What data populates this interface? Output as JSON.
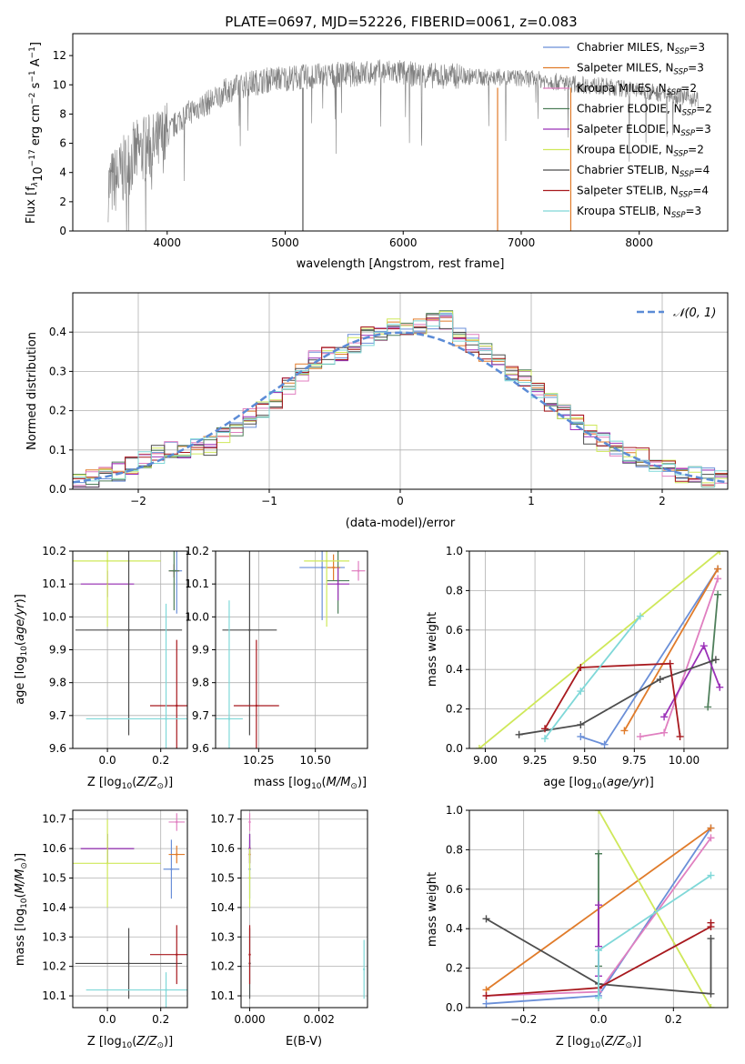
{
  "figure_title": "PLATE=0697, MJD=52226, FIBERID=0061, z=0.083",
  "colors": {
    "chabrier_miles": "#6a8fd8",
    "salpeter_miles": "#e07b2a",
    "kroupa_miles": "#e07fc0",
    "chabrier_elodie": "#4f7f5b",
    "salpeter_elodie": "#9b30b8",
    "kroupa_elodie": "#cfe85a",
    "chabrier_stelib": "#4d4d4d",
    "salpeter_stelib": "#a8191e",
    "kroupa_stelib": "#7fd8d8",
    "data": "#808080",
    "normal": "#5b8bd6"
  },
  "chart_data": [
    {
      "type": "line",
      "id": "spectrum",
      "xlabel": "wavelength [Angstrom, rest frame]",
      "ylabel": "Flux [f",
      "ylabel_parts": [
        "Flux [f",
        "λ",
        "10",
        "−17",
        " erg cm",
        "−2",
        " s",
        "−1",
        " A",
        "−1",
        "]"
      ],
      "xlim": [
        3200,
        8750
      ],
      "ylim": [
        0,
        13.5
      ],
      "xticks": [
        4000,
        5000,
        6000,
        7000,
        8000
      ],
      "yticks": [
        0,
        2,
        4,
        6,
        8,
        10,
        12
      ],
      "legend_position": "right",
      "legend": [
        {
          "label": "Chabrier MILES, N",
          "sub": "SSP",
          "eq": "=3",
          "color": "#6a8fd8"
        },
        {
          "label": "Salpeter MILES, N",
          "sub": "SSP",
          "eq": "=3",
          "color": "#e07b2a"
        },
        {
          "label": "Kroupa MILES, N",
          "sub": "SSP",
          "eq": "=2",
          "color": "#e07fc0"
        },
        {
          "label": "Chabrier ELODIE, N",
          "sub": "SSP",
          "eq": "=2",
          "color": "#4f7f5b"
        },
        {
          "label": "Salpeter ELODIE, N",
          "sub": "SSP",
          "eq": "=3",
          "color": "#9b30b8"
        },
        {
          "label": "Kroupa ELODIE, N",
          "sub": "SSP",
          "eq": "=2",
          "color": "#cfe85a"
        },
        {
          "label": "Chabrier STELIB, N",
          "sub": "SSP",
          "eq": "=4",
          "color": "#4d4d4d"
        },
        {
          "label": "Salpeter STELIB, N",
          "sub": "SSP",
          "eq": "=4",
          "color": "#a8191e"
        },
        {
          "label": "Kroupa STELIB, N",
          "sub": "SSP",
          "eq": "=3",
          "color": "#7fd8d8"
        }
      ],
      "continuum": {
        "x": [
          3500,
          3600,
          3700,
          3800,
          3900,
          4000,
          4100,
          4200,
          4300,
          4400,
          4500,
          4700,
          4900,
          5100,
          5300,
          5500,
          5700,
          5900,
          6100,
          6300,
          6500,
          6700,
          6900,
          7100,
          7300,
          7500,
          7700,
          7900,
          8100,
          8300,
          8500
        ],
        "y": [
          3.0,
          3.8,
          5.0,
          5.6,
          5.8,
          6.6,
          7.6,
          8.2,
          8.6,
          9.0,
          9.6,
          10.1,
          10.4,
          10.5,
          10.6,
          10.7,
          10.8,
          10.9,
          10.7,
          10.6,
          10.6,
          10.5,
          10.5,
          10.4,
          10.2,
          10.0,
          9.9,
          9.7,
          9.5,
          9.3,
          9.0
        ]
      }
    },
    {
      "type": "bar",
      "id": "residuals",
      "xlabel": "(data-model)/error",
      "ylabel": "Normed distribution",
      "xlim": [
        -2.5,
        2.5
      ],
      "ylim": [
        0,
        0.5
      ],
      "xticks": [
        -2,
        -1,
        0,
        1,
        2
      ],
      "yticks": [
        0.0,
        0.1,
        0.2,
        0.3,
        0.4
      ],
      "grid": true,
      "legend_position": "top-right",
      "legend_label": "𝒩(0, 1)",
      "bin_centers": [
        -2.45,
        -2.35,
        -2.25,
        -2.15,
        -2.05,
        -1.95,
        -1.85,
        -1.75,
        -1.65,
        -1.55,
        -1.45,
        -1.35,
        -1.25,
        -1.15,
        -1.05,
        -0.95,
        -0.85,
        -0.75,
        -0.65,
        -0.55,
        -0.45,
        -0.35,
        -0.25,
        -0.15,
        -0.05,
        0.05,
        0.15,
        0.25,
        0.35,
        0.45,
        0.55,
        0.65,
        0.75,
        0.85,
        0.95,
        1.05,
        1.15,
        1.25,
        1.35,
        1.45,
        1.55,
        1.65,
        1.75,
        1.85,
        1.95,
        2.05,
        2.15,
        2.25,
        2.35,
        2.45
      ],
      "histogram": [
        0.018,
        0.025,
        0.031,
        0.045,
        0.06,
        0.075,
        0.09,
        0.1,
        0.102,
        0.104,
        0.11,
        0.14,
        0.16,
        0.18,
        0.2,
        0.23,
        0.26,
        0.3,
        0.33,
        0.34,
        0.35,
        0.37,
        0.39,
        0.4,
        0.41,
        0.4,
        0.41,
        0.43,
        0.43,
        0.39,
        0.37,
        0.35,
        0.33,
        0.3,
        0.28,
        0.25,
        0.22,
        0.2,
        0.17,
        0.14,
        0.12,
        0.1,
        0.09,
        0.08,
        0.065,
        0.05,
        0.04,
        0.035,
        0.03,
        0.03
      ]
    },
    {
      "type": "scatter",
      "id": "age-vs-Z",
      "xlabel": "Z [log",
      "xlabel_parts": [
        "Z [log",
        "10",
        "(",
        "Z/Z",
        "⊙",
        ")]"
      ],
      "ylabel": "age  [log",
      "ylabel_parts": [
        "age  [log",
        "10",
        "(",
        "age/yr",
        ")]"
      ],
      "xlim": [
        -0.13,
        0.3
      ],
      "ylim": [
        9.6,
        10.2
      ],
      "xticks": [
        0.0,
        0.2
      ],
      "yticks": [
        9.6,
        9.7,
        9.8,
        9.9,
        10.0,
        10.1,
        10.2
      ],
      "grid": true,
      "points": [
        {
          "model": "chabrier_miles",
          "x": 0.26,
          "y": 10.14,
          "xerr": 0.02,
          "yerr": 0.13
        },
        {
          "model": "salpeter_miles",
          "x": 0.25,
          "y": 10.14,
          "xerr": 0.02,
          "yerr": 0.02
        },
        {
          "model": "kroupa_miles",
          "x": 0.25,
          "y": 10.14,
          "xerr": 0.02,
          "yerr": 0.02
        },
        {
          "model": "chabrier_elodie",
          "x": 0.25,
          "y": 10.14,
          "xerr": 0.02,
          "yerr": 0.12
        },
        {
          "model": "salpeter_elodie",
          "x": 0.0,
          "y": 10.1,
          "xerr": 0.1,
          "yerr": 0.04
        },
        {
          "model": "kroupa_elodie",
          "x": 0.0,
          "y": 10.17,
          "xerr": 0.2,
          "yerr": 0.2
        },
        {
          "model": "chabrier_stelib",
          "x": 0.08,
          "y": 9.96,
          "xerr": 0.2,
          "yerr": 0.32
        },
        {
          "model": "salpeter_stelib",
          "x": 0.26,
          "y": 9.73,
          "xerr": 0.1,
          "yerr": 0.2
        },
        {
          "model": "kroupa_stelib",
          "x": 0.22,
          "y": 9.69,
          "xerr": 0.3,
          "yerr": 0.35
        }
      ]
    },
    {
      "type": "scatter",
      "id": "age-vs-mass",
      "xlabel": "mass [log",
      "xlabel_parts": [
        "mass [log",
        "10",
        "(",
        "M/M",
        "⊙",
        ")]"
      ],
      "xlim": [
        10.06,
        10.73
      ],
      "ylim": [
        9.6,
        10.2
      ],
      "xticks": [
        10.25,
        10.5
      ],
      "yticks": [
        9.6,
        9.7,
        9.8,
        9.9,
        10.0,
        10.1,
        10.2
      ],
      "grid": true,
      "points": [
        {
          "model": "chabrier_miles",
          "x": 10.53,
          "y": 10.15,
          "xerr": 0.1,
          "yerr": 0.16
        },
        {
          "model": "salpeter_miles",
          "x": 10.58,
          "y": 10.15,
          "xerr": 0.03,
          "yerr": 0.04
        },
        {
          "model": "kroupa_miles",
          "x": 10.69,
          "y": 10.14,
          "xerr": 0.03,
          "yerr": 0.03
        },
        {
          "model": "chabrier_elodie",
          "x": 10.6,
          "y": 10.11,
          "xerr": 0.05,
          "yerr": 0.1
        },
        {
          "model": "salpeter_elodie",
          "x": 10.6,
          "y": 10.1,
          "xerr": 0.05,
          "yerr": 0.05
        },
        {
          "model": "kroupa_elodie",
          "x": 10.55,
          "y": 10.17,
          "xerr": 0.1,
          "yerr": 0.2
        },
        {
          "model": "chabrier_stelib",
          "x": 10.21,
          "y": 9.96,
          "xerr": 0.12,
          "yerr": 0.32
        },
        {
          "model": "salpeter_stelib",
          "x": 10.24,
          "y": 9.73,
          "xerr": 0.1,
          "yerr": 0.2
        },
        {
          "model": "kroupa_stelib",
          "x": 10.12,
          "y": 9.69,
          "xerr": 0.06,
          "yerr": 0.36
        }
      ]
    },
    {
      "type": "line",
      "id": "weight-vs-age",
      "xlabel": "age  [log",
      "xlabel_parts": [
        "age  [log",
        "10",
        "(",
        "age/yr",
        ")]"
      ],
      "ylabel": "mass weight",
      "xlim": [
        8.92,
        10.22
      ],
      "ylim": [
        0,
        1
      ],
      "xticks": [
        9.0,
        9.25,
        9.5,
        9.75,
        10.0
      ],
      "yticks": [
        0.0,
        0.2,
        0.4,
        0.6,
        0.8,
        1.0
      ],
      "grid": true,
      "series": [
        {
          "model": "chabrier_miles",
          "x": [
            9.48,
            9.6,
            10.17
          ],
          "y": [
            0.06,
            0.02,
            0.91
          ]
        },
        {
          "model": "salpeter_miles",
          "x": [
            9.7,
            10.17
          ],
          "y": [
            0.09,
            0.91
          ]
        },
        {
          "model": "kroupa_miles",
          "x": [
            9.78,
            9.9,
            10.17
          ],
          "y": [
            0.06,
            0.08,
            0.86
          ]
        },
        {
          "model": "chabrier_elodie",
          "x": [
            10.12,
            10.17
          ],
          "y": [
            0.21,
            0.78
          ]
        },
        {
          "model": "salpeter_elodie",
          "x": [
            9.9,
            10.1,
            10.18
          ],
          "y": [
            0.16,
            0.52,
            0.31
          ]
        },
        {
          "model": "kroupa_elodie",
          "x": [
            8.97,
            10.18
          ],
          "y": [
            0.0,
            1.0
          ]
        },
        {
          "model": "chabrier_stelib",
          "x": [
            9.17,
            9.48,
            9.88,
            10.16
          ],
          "y": [
            0.07,
            0.12,
            0.35,
            0.45
          ]
        },
        {
          "model": "salpeter_stelib",
          "x": [
            9.3,
            9.48,
            9.93,
            9.98
          ],
          "y": [
            0.1,
            0.41,
            0.43,
            0.06
          ]
        },
        {
          "model": "kroupa_stelib",
          "x": [
            9.3,
            9.48,
            9.78
          ],
          "y": [
            0.05,
            0.29,
            0.67
          ]
        }
      ]
    },
    {
      "type": "scatter",
      "id": "mass-vs-Z",
      "xlabel": "Z [log",
      "xlabel_parts": [
        "Z [log",
        "10",
        "(",
        "Z/Z",
        "⊙",
        ")]"
      ],
      "ylabel": "mass [log",
      "ylabel_parts": [
        "mass [log",
        "10",
        "(",
        "M/M",
        "⊙",
        ")]"
      ],
      "xlim": [
        -0.13,
        0.3
      ],
      "ylim": [
        10.06,
        10.73
      ],
      "xticks": [
        0.0,
        0.2
      ],
      "yticks": [
        10.1,
        10.2,
        10.3,
        10.4,
        10.5,
        10.6,
        10.7
      ],
      "grid": true,
      "points": [
        {
          "model": "chabrier_miles",
          "x": 0.24,
          "y": 10.53,
          "xerr": 0.03,
          "yerr": 0.1
        },
        {
          "model": "salpeter_miles",
          "x": 0.26,
          "y": 10.58,
          "xerr": 0.03,
          "yerr": 0.03
        },
        {
          "model": "kroupa_miles",
          "x": 0.26,
          "y": 10.69,
          "xerr": 0.03,
          "yerr": 0.03
        },
        {
          "model": "chabrier_elodie",
          "x": 0.0,
          "y": 10.6,
          "xerr": 0.1,
          "yerr": 0.05
        },
        {
          "model": "salpeter_elodie",
          "x": 0.0,
          "y": 10.6,
          "xerr": 0.1,
          "yerr": 0.05
        },
        {
          "model": "kroupa_elodie",
          "x": 0.0,
          "y": 10.55,
          "xerr": 0.2,
          "yerr": 0.15
        },
        {
          "model": "chabrier_stelib",
          "x": 0.08,
          "y": 10.21,
          "xerr": 0.2,
          "yerr": 0.12
        },
        {
          "model": "salpeter_stelib",
          "x": 0.26,
          "y": 10.24,
          "xerr": 0.1,
          "yerr": 0.1
        },
        {
          "model": "kroupa_stelib",
          "x": 0.22,
          "y": 10.12,
          "xerr": 0.3,
          "yerr": 0.06
        }
      ]
    },
    {
      "type": "scatter",
      "id": "mass-vs-EBV",
      "xlabel": "E(B-V)",
      "xlim": [
        -0.00025,
        0.0034
      ],
      "ylim": [
        10.06,
        10.73
      ],
      "xticks": [
        0.0,
        0.002
      ],
      "xtick_labels": [
        "0.000",
        "0.002"
      ],
      "yticks": [
        10.1,
        10.2,
        10.3,
        10.4,
        10.5,
        10.6,
        10.7
      ],
      "grid": true,
      "points": [
        {
          "model": "chabrier_miles",
          "x": 0.0,
          "y": 10.53,
          "yerr": 0.1
        },
        {
          "model": "salpeter_miles",
          "x": 0.0,
          "y": 10.58,
          "yerr": 0.03
        },
        {
          "model": "kroupa_miles",
          "x": 0.0,
          "y": 10.69,
          "yerr": 0.03
        },
        {
          "model": "chabrier_elodie",
          "x": 0.0,
          "y": 10.6,
          "yerr": 0.05
        },
        {
          "model": "salpeter_elodie",
          "x": 0.0,
          "y": 10.6,
          "yerr": 0.05
        },
        {
          "model": "kroupa_elodie",
          "x": 0.0,
          "y": 10.5,
          "yerr": 0.1
        },
        {
          "model": "chabrier_stelib",
          "x": 0.0,
          "y": 10.21,
          "yerr": 0.12
        },
        {
          "model": "salpeter_stelib",
          "x": 0.0,
          "y": 10.24,
          "yerr": 0.1
        },
        {
          "model": "kroupa_stelib",
          "x": 0.0033,
          "y": 10.19,
          "yerr": 0.1
        }
      ]
    },
    {
      "type": "line",
      "id": "weight-vs-Z",
      "xlabel": "Z [log",
      "xlabel_parts": [
        "Z [log",
        "10",
        "(",
        "Z/Z",
        "⊙",
        ")]"
      ],
      "ylabel": "mass weight",
      "xlim": [
        -0.345,
        0.345
      ],
      "ylim": [
        0,
        1
      ],
      "xticks": [
        -0.2,
        0.0,
        0.2
      ],
      "yticks": [
        0.0,
        0.2,
        0.4,
        0.6,
        0.8,
        1.0
      ],
      "grid": true,
      "series": [
        {
          "model": "chabrier_miles",
          "x": [
            -0.3,
            0.0,
            0.3
          ],
          "y": [
            0.02,
            0.06,
            0.91
          ]
        },
        {
          "model": "salpeter_miles",
          "x": [
            -0.3,
            0.3
          ],
          "y": [
            0.09,
            0.91
          ]
        },
        {
          "model": "kroupa_miles",
          "x": [
            -0.3,
            0.0,
            0.3
          ],
          "y": [
            0.06,
            0.08,
            0.86
          ]
        },
        {
          "model": "chabrier_elodie",
          "x": [
            0.0,
            0.0
          ],
          "y": [
            0.21,
            0.78
          ]
        },
        {
          "model": "salpeter_elodie",
          "x": [
            0.0,
            0.0,
            0.0
          ],
          "y": [
            0.16,
            0.52,
            0.31
          ]
        },
        {
          "model": "kroupa_elodie",
          "x": [
            0.0,
            0.3
          ],
          "y": [
            1.0,
            0.0
          ]
        },
        {
          "model": "chabrier_stelib",
          "x": [
            -0.3,
            0.0,
            0.3,
            0.3
          ],
          "y": [
            0.45,
            0.12,
            0.07,
            0.35
          ]
        },
        {
          "model": "salpeter_stelib",
          "x": [
            -0.3,
            0.0,
            0.3,
            0.3
          ],
          "y": [
            0.06,
            0.1,
            0.41,
            0.43
          ]
        },
        {
          "model": "kroupa_stelib",
          "x": [
            0.0,
            0.0,
            0.3
          ],
          "y": [
            0.05,
            0.29,
            0.67
          ]
        }
      ]
    }
  ]
}
